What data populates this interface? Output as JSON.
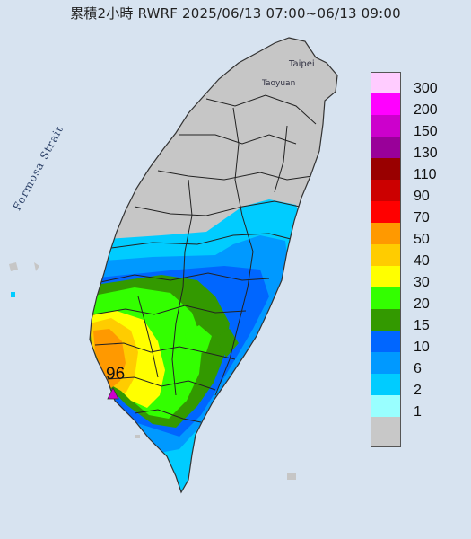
{
  "title": "累積2小時 RWRF 2025/06/13 07:00~06/13 09:00",
  "places": {
    "taipei": "Taipei",
    "taoyuan": "Taoyuan",
    "strait": "Formosa Strait"
  },
  "max_value": "96",
  "legend": [
    {
      "label": "300",
      "color": "#ffccff"
    },
    {
      "label": "200",
      "color": "#ff00ff"
    },
    {
      "label": "150",
      "color": "#cc00cc"
    },
    {
      "label": "130",
      "color": "#990099"
    },
    {
      "label": "110",
      "color": "#990000"
    },
    {
      "label": "90",
      "color": "#cc0000"
    },
    {
      "label": "70",
      "color": "#ff0000"
    },
    {
      "label": "50",
      "color": "#ff9900"
    },
    {
      "label": "40",
      "color": "#ffcc00"
    },
    {
      "label": "30",
      "color": "#ffff00"
    },
    {
      "label": "20",
      "color": "#33ff00"
    },
    {
      "label": "15",
      "color": "#339900"
    },
    {
      "label": "10",
      "color": "#0066ff"
    },
    {
      "label": "6",
      "color": "#0099ff"
    },
    {
      "label": "2",
      "color": "#00ccff"
    },
    {
      "label": "1",
      "color": "#99ffff"
    },
    {
      "label": "",
      "color": "#c8c8c8"
    }
  ],
  "colors": {
    "sea": "#d7e3f0",
    "land": "#c6c6c6"
  }
}
